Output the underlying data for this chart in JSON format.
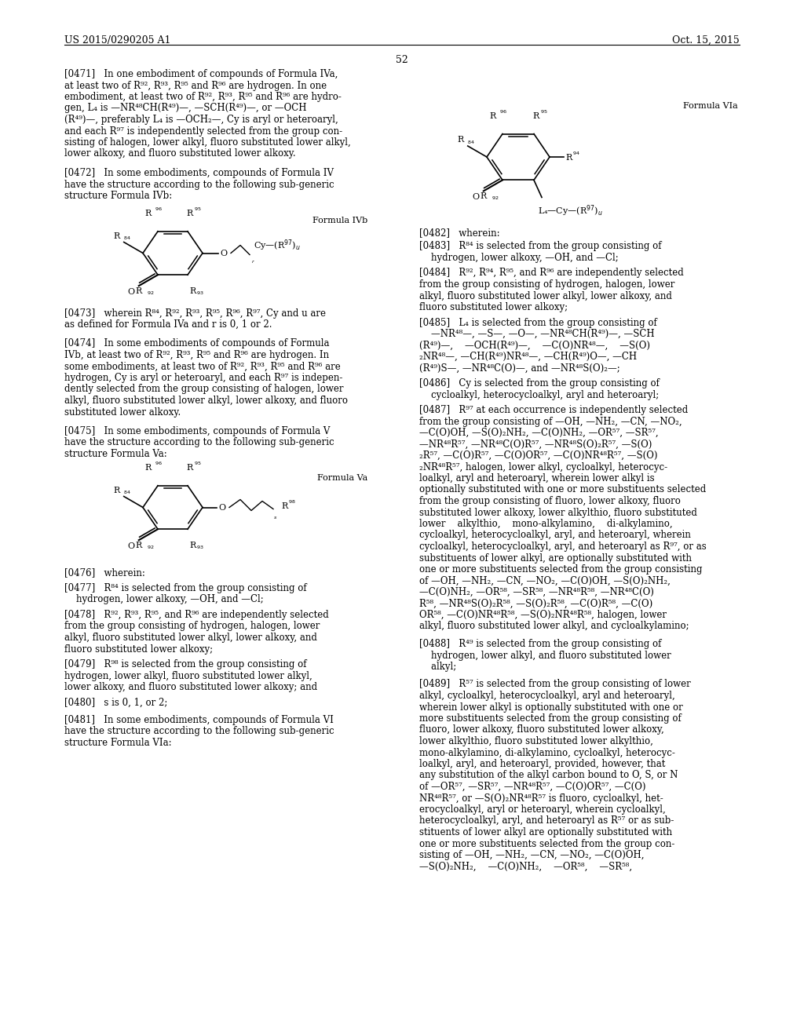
{
  "page_header_left": "US 2015/0290205 A1",
  "page_header_right": "Oct. 15, 2015",
  "page_number": "52",
  "background_color": "#ffffff",
  "text_color": "#000000",
  "fs": 8.5,
  "fsh": 9.0,
  "fs_formula": 8.0,
  "fs_sup": 6.5
}
